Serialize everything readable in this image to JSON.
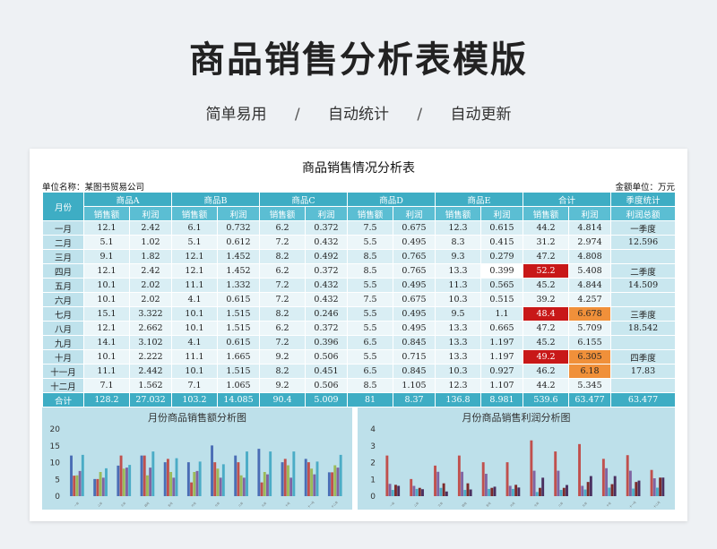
{
  "hero": {
    "title": "商品销售分析表模版",
    "tags": [
      "简单易用",
      "自动统计",
      "自动更新"
    ],
    "separator": "/"
  },
  "sheet": {
    "title": "商品销售情况分析表",
    "unit_label": "单位名称：某图书贸易公司",
    "amount_unit": "金额单位：万元",
    "header_month": "月份",
    "groups": [
      "商品A",
      "商品B",
      "商品C",
      "商品D",
      "商品E",
      "合计"
    ],
    "season_header": "季度统计",
    "sub_sales": "销售额",
    "sub_profit": "利润",
    "sub_season_total": "利润总额",
    "rows": [
      {
        "month": "一月",
        "v": [
          "12.1",
          "2.42",
          "6.1",
          "0.732",
          "6.2",
          "0.372",
          "7.5",
          "0.675",
          "12.3",
          "0.615",
          "44.2",
          "4.814"
        ]
      },
      {
        "month": "二月",
        "v": [
          "5.1",
          "1.02",
          "5.1",
          "0.612",
          "7.2",
          "0.432",
          "5.5",
          "0.495",
          "8.3",
          "0.415",
          "31.2",
          "2.974"
        ]
      },
      {
        "month": "三月",
        "v": [
          "9.1",
          "1.82",
          "12.1",
          "1.452",
          "8.2",
          "0.492",
          "8.5",
          "0.765",
          "9.3",
          "0.279",
          "47.2",
          "4.808"
        ]
      },
      {
        "month": "四月",
        "v": [
          "12.1",
          "2.42",
          "12.1",
          "1.452",
          "6.2",
          "0.372",
          "8.5",
          "0.765",
          "13.3",
          "0.399",
          "52.2",
          "5.408"
        ]
      },
      {
        "month": "五月",
        "v": [
          "10.1",
          "2.02",
          "11.1",
          "1.332",
          "7.2",
          "0.432",
          "5.5",
          "0.495",
          "11.3",
          "0.565",
          "45.2",
          "4.844"
        ]
      },
      {
        "month": "六月",
        "v": [
          "10.1",
          "2.02",
          "4.1",
          "0.615",
          "7.2",
          "0.432",
          "7.5",
          "0.675",
          "10.3",
          "0.515",
          "39.2",
          "4.257"
        ]
      },
      {
        "month": "七月",
        "v": [
          "15.1",
          "3.322",
          "10.1",
          "1.515",
          "8.2",
          "0.246",
          "5.5",
          "0.495",
          "9.5",
          "1.1",
          "48.4",
          "6.678"
        ]
      },
      {
        "month": "八月",
        "v": [
          "12.1",
          "2.662",
          "10.1",
          "1.515",
          "6.2",
          "0.372",
          "5.5",
          "0.495",
          "13.3",
          "0.665",
          "47.2",
          "5.709"
        ]
      },
      {
        "month": "九月",
        "v": [
          "14.1",
          "3.102",
          "4.1",
          "0.615",
          "7.2",
          "0.396",
          "6.5",
          "0.845",
          "13.3",
          "1.197",
          "45.2",
          "6.155"
        ]
      },
      {
        "month": "十月",
        "v": [
          "10.1",
          "2.222",
          "11.1",
          "1.665",
          "9.2",
          "0.506",
          "5.5",
          "0.715",
          "13.3",
          "1.197",
          "49.2",
          "6.305"
        ]
      },
      {
        "month": "十一月",
        "v": [
          "11.1",
          "2.442",
          "10.1",
          "1.515",
          "8.2",
          "0.451",
          "6.5",
          "0.845",
          "10.3",
          "0.927",
          "46.2",
          "6.18"
        ]
      },
      {
        "month": "十二月",
        "v": [
          "7.1",
          "1.562",
          "7.1",
          "1.065",
          "9.2",
          "0.506",
          "8.5",
          "1.105",
          "12.3",
          "1.107",
          "44.2",
          "5.345"
        ]
      }
    ],
    "seasons": [
      {
        "name": "一季度",
        "value": "12.596"
      },
      {
        "name": "二季度",
        "value": "14.509"
      },
      {
        "name": "三季度",
        "value": "18.542"
      },
      {
        "name": "四季度",
        "value": "17.83"
      }
    ],
    "total_row": {
      "label": "合计",
      "v": [
        "128.2",
        "27.032",
        "103.2",
        "14.085",
        "90.4",
        "5.009",
        "81",
        "8.37",
        "136.8",
        "8.981",
        "539.6",
        "63.477"
      ],
      "season_total": "63.477"
    },
    "highlight_colors": {
      "red": "#c81818",
      "orange": "#f0903a",
      "header": "#3eadc4"
    }
  },
  "chart_data": [
    {
      "type": "bar",
      "title": "月份商品销售额分析图",
      "categories": [
        "一月",
        "二月",
        "三月",
        "四月",
        "五月",
        "六月",
        "七月",
        "八月",
        "九月",
        "十月",
        "十一月",
        "十二月"
      ],
      "ylim": [
        0,
        20
      ],
      "yticks": [
        0,
        5,
        10,
        15,
        20
      ],
      "series": [
        {
          "values": [
            12.1,
            5.1,
            9.1,
            12.1,
            10.1,
            10.1,
            15.1,
            12.1,
            14.1,
            10.1,
            11.1,
            7.1
          ],
          "color": "#4a6db5"
        },
        {
          "values": [
            6.1,
            5.1,
            12.1,
            12.1,
            11.1,
            4.1,
            10.1,
            10.1,
            4.1,
            11.1,
            10.1,
            7.1
          ],
          "color": "#c0504d"
        },
        {
          "values": [
            6.2,
            7.2,
            8.2,
            6.2,
            7.2,
            7.2,
            8.2,
            6.2,
            7.2,
            9.2,
            8.2,
            9.2
          ],
          "color": "#9bbb59"
        },
        {
          "values": [
            7.5,
            5.5,
            8.5,
            8.5,
            5.5,
            7.5,
            5.5,
            5.5,
            6.5,
            5.5,
            6.5,
            8.5
          ],
          "color": "#8064a2"
        },
        {
          "values": [
            12.3,
            8.3,
            9.3,
            13.3,
            11.3,
            10.3,
            9.5,
            13.3,
            13.3,
            13.3,
            10.3,
            12.3
          ],
          "color": "#4bacc6"
        }
      ]
    },
    {
      "type": "bar",
      "title": "月份商品销售利润分析图",
      "categories": [
        "一月",
        "二月",
        "三月",
        "四月",
        "五月",
        "六月",
        "七月",
        "八月",
        "九月",
        "十月",
        "十一月",
        "十二月"
      ],
      "ylim": [
        0,
        4
      ],
      "yticks": [
        0,
        1,
        2,
        3,
        4
      ],
      "series": [
        {
          "values": [
            2.42,
            1.02,
            1.82,
            2.42,
            2.02,
            2.02,
            3.322,
            2.662,
            3.102,
            2.222,
            2.442,
            1.562
          ],
          "color": "#c0504d"
        },
        {
          "values": [
            0.732,
            0.612,
            1.452,
            1.452,
            1.332,
            0.615,
            1.515,
            1.515,
            0.615,
            1.665,
            1.515,
            1.065
          ],
          "color": "#8064a2"
        },
        {
          "values": [
            0.372,
            0.432,
            0.492,
            0.372,
            0.432,
            0.432,
            0.246,
            0.372,
            0.396,
            0.506,
            0.451,
            0.506
          ],
          "color": "#4bacc6"
        },
        {
          "values": [
            0.675,
            0.495,
            0.765,
            0.765,
            0.495,
            0.675,
            0.495,
            0.495,
            0.845,
            0.715,
            0.845,
            1.105
          ],
          "color": "#7d2a2a"
        },
        {
          "values": [
            0.615,
            0.415,
            0.279,
            0.399,
            0.565,
            0.515,
            1.1,
            0.665,
            1.197,
            1.197,
            0.927,
            1.107
          ],
          "color": "#4a3060"
        }
      ]
    }
  ]
}
